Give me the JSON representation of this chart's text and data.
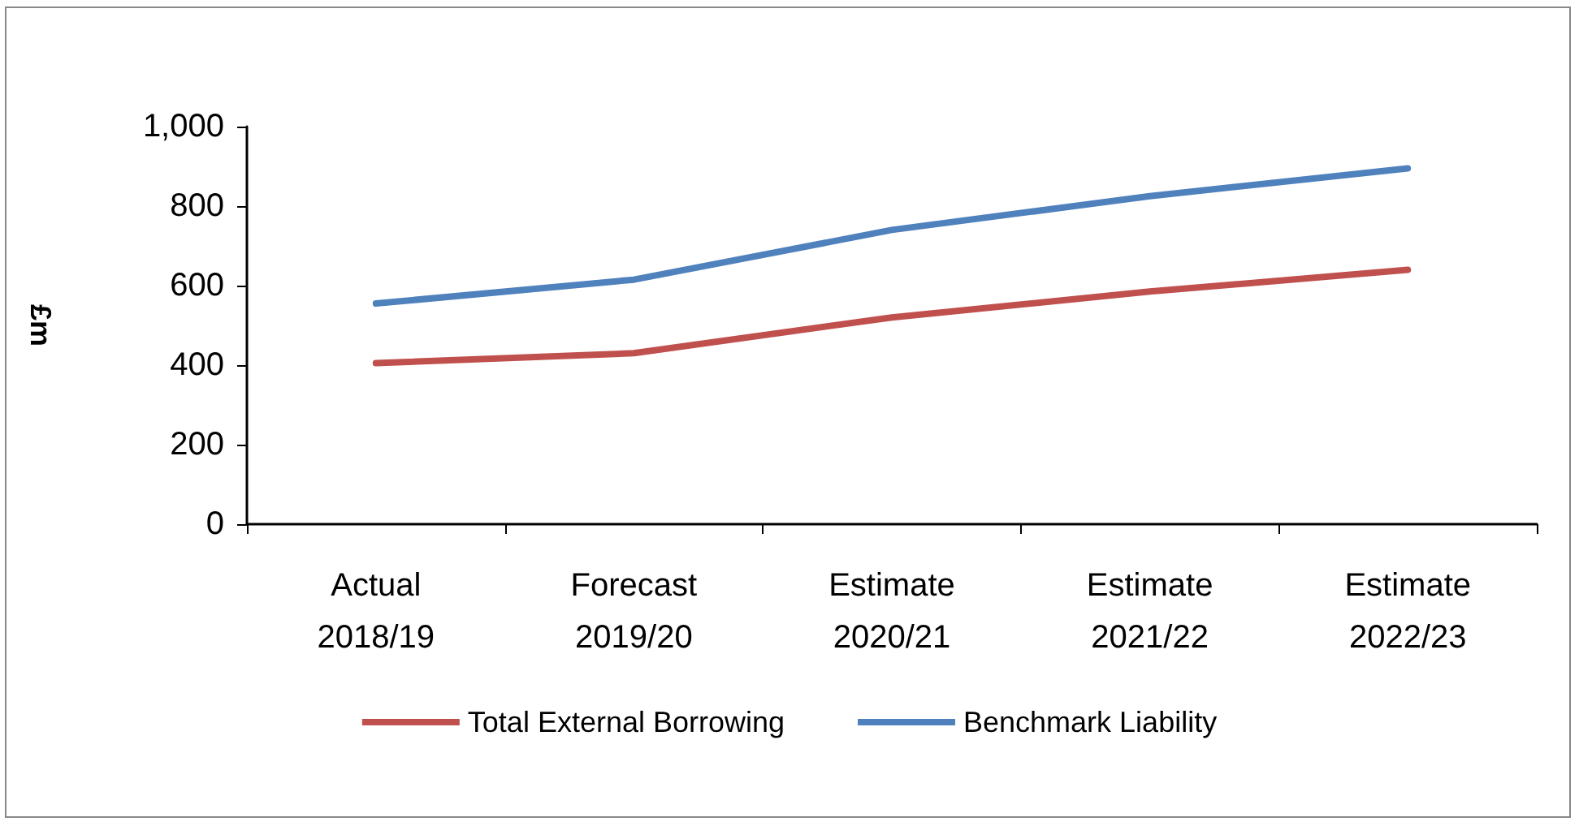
{
  "chart_data": {
    "type": "line",
    "ylabel": "£m",
    "categories": [
      "Actual 2018/19",
      "Forecast 2019/20",
      "Estimate 2020/21",
      "Estimate 2021/22",
      "Estimate 2022/23"
    ],
    "series": [
      {
        "name": "Total External Borrowing",
        "color": "#c0504d",
        "values": [
          405,
          430,
          520,
          585,
          640
        ]
      },
      {
        "name": "Benchmark Liability",
        "color": "#4f81bd",
        "values": [
          555,
          615,
          740,
          825,
          895
        ]
      }
    ],
    "ylim": [
      0,
      1000
    ],
    "yticks": [
      0,
      200,
      400,
      600,
      800,
      {
        "value": 1000,
        "label": "1,000"
      }
    ],
    "grid": false,
    "legend": "bottom",
    "marker": "none",
    "line_style": "solid"
  }
}
